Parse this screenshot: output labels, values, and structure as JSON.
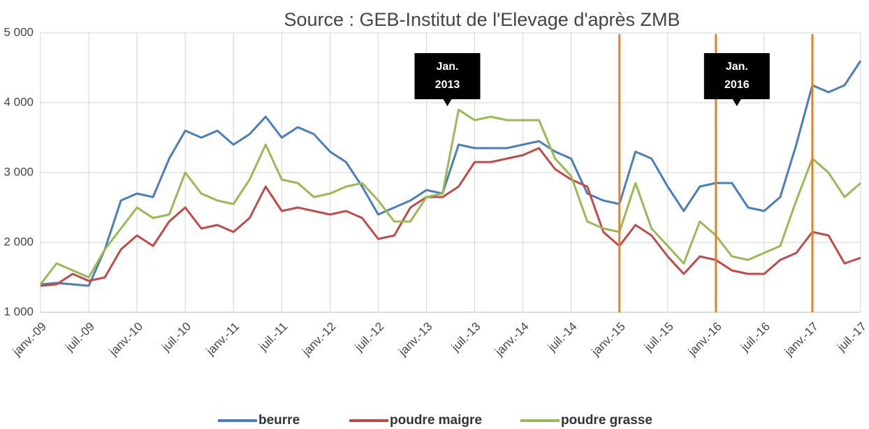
{
  "chart_data": {
    "type": "line",
    "title": "Source : GEB-Institut de l'Elevage d'après ZMB",
    "categories": [
      "janv.-09",
      null,
      null,
      "juil.-09",
      null,
      null,
      "janv.-10",
      null,
      null,
      "juil.-10",
      null,
      null,
      "janv.-11",
      null,
      null,
      "juil.-11",
      null,
      null,
      "janv.-12",
      null,
      null,
      "juil.-12",
      null,
      null,
      "janv.-13",
      null,
      null,
      "juil.-13",
      null,
      null,
      "janv.-14",
      null,
      null,
      "juil.-14",
      null,
      null,
      "janv.-15",
      null,
      null,
      "juil.-15",
      null,
      null,
      "janv.-16",
      null,
      null,
      "juil.-16",
      null,
      null,
      "janv.-17",
      null,
      null,
      "juil.-17"
    ],
    "series": [
      {
        "name": "beurre",
        "color": "#4a7ebb",
        "values": [
          1400,
          1420,
          1400,
          1380,
          1900,
          2600,
          2700,
          2650,
          3200,
          3600,
          3500,
          3600,
          3400,
          3550,
          3800,
          3500,
          3650,
          3550,
          3300,
          3150,
          2800,
          2400,
          2500,
          2600,
          2750,
          2700,
          3400,
          3350,
          3350,
          3350,
          3400,
          3450,
          3300,
          3200,
          2700,
          2600,
          2550,
          3300,
          3200,
          2800,
          2450,
          2800,
          2850,
          2850,
          2500,
          2450,
          2650,
          3400,
          4250,
          4150,
          4250,
          4600
        ]
      },
      {
        "name": "poudre maigre",
        "color": "#be4b48",
        "values": [
          1380,
          1400,
          1550,
          1450,
          1500,
          1900,
          2100,
          1950,
          2300,
          2500,
          2200,
          2250,
          2150,
          2350,
          2800,
          2450,
          2500,
          2450,
          2400,
          2450,
          2350,
          2050,
          2100,
          2500,
          2650,
          2650,
          2800,
          3150,
          3150,
          3200,
          3250,
          3350,
          3050,
          2900,
          2800,
          2150,
          1950,
          2250,
          2100,
          1800,
          1550,
          1800,
          1750,
          1600,
          1550,
          1550,
          1750,
          1850,
          2150,
          2100,
          1700,
          1780
        ]
      },
      {
        "name": "poudre grasse",
        "color": "#98b954",
        "values": [
          1400,
          1700,
          1600,
          1500,
          1900,
          2200,
          2500,
          2350,
          2400,
          3000,
          2700,
          2600,
          2550,
          2900,
          3400,
          2900,
          2850,
          2650,
          2700,
          2800,
          2850,
          2600,
          2300,
          2300,
          2650,
          2700,
          3900,
          3750,
          3800,
          3750,
          3750,
          3750,
          3200,
          2950,
          2300,
          2200,
          2150,
          2850,
          2200,
          1950,
          1700,
          2300,
          2100,
          1800,
          1750,
          1850,
          1950,
          2600,
          3200,
          3000,
          2650,
          2850
        ]
      }
    ],
    "ylim": [
      1000,
      5000
    ],
    "yticks": [
      {
        "value": 1000,
        "label": "1 000"
      },
      {
        "value": 2000,
        "label": "2 000"
      },
      {
        "value": 3000,
        "label": "3 000"
      },
      {
        "value": 4000,
        "label": "4 000"
      },
      {
        "value": 5000,
        "label": "5 000"
      }
    ],
    "grid": true,
    "legend": "bottom",
    "marker_lines": {
      "color": "#f07c1a",
      "at": [
        "janv.-15",
        "janv.-16",
        "janv.-17"
      ]
    },
    "annotations": [
      {
        "lines": [
          "Jan.",
          "2013"
        ],
        "at": "janv.-13"
      },
      {
        "lines": [
          "Jan.",
          "2016"
        ],
        "at": "janv.-16"
      }
    ]
  }
}
